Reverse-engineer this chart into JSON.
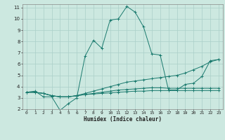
{
  "xlabel": "Humidex (Indice chaleur)",
  "bg_color": "#cce8e0",
  "grid_color": "#aacfc8",
  "line_color": "#1a7a6e",
  "xlim": [
    -0.5,
    23.5
  ],
  "ylim": [
    2,
    11.3
  ],
  "xticks": [
    0,
    1,
    2,
    3,
    4,
    5,
    6,
    7,
    8,
    9,
    10,
    11,
    12,
    13,
    14,
    15,
    16,
    17,
    18,
    19,
    20,
    21,
    22,
    23
  ],
  "yticks": [
    2,
    3,
    4,
    5,
    6,
    7,
    8,
    9,
    10,
    11
  ],
  "series": [
    {
      "x": [
        0,
        1,
        2,
        3,
        4,
        5,
        6,
        7,
        8,
        9,
        10,
        11,
        12,
        13,
        14,
        15,
        16,
        17,
        18,
        19,
        20,
        21,
        22,
        23
      ],
      "y": [
        3.5,
        3.6,
        3.1,
        3.1,
        1.9,
        2.5,
        3.0,
        6.7,
        8.1,
        7.4,
        9.9,
        10.0,
        11.1,
        10.6,
        9.3,
        6.9,
        6.8,
        3.7,
        3.7,
        4.2,
        4.3,
        4.9,
        6.3,
        6.4
      ]
    },
    {
      "x": [
        0,
        1,
        2,
        3,
        4,
        5,
        6,
        7,
        8,
        9,
        10,
        11,
        12,
        13,
        14,
        15,
        16,
        17,
        18,
        19,
        20,
        21,
        22,
        23
      ],
      "y": [
        3.5,
        3.5,
        3.4,
        3.2,
        3.1,
        3.1,
        3.2,
        3.4,
        3.6,
        3.8,
        4.0,
        4.2,
        4.4,
        4.5,
        4.6,
        4.7,
        4.8,
        4.9,
        5.0,
        5.2,
        5.5,
        5.8,
        6.2,
        6.4
      ]
    },
    {
      "x": [
        0,
        1,
        2,
        3,
        4,
        5,
        6,
        7,
        8,
        9,
        10,
        11,
        12,
        13,
        14,
        15,
        16,
        17,
        18,
        19,
        20,
        21,
        22,
        23
      ],
      "y": [
        3.5,
        3.5,
        3.4,
        3.2,
        3.1,
        3.1,
        3.2,
        3.3,
        3.4,
        3.5,
        3.6,
        3.7,
        3.75,
        3.8,
        3.85,
        3.9,
        3.9,
        3.85,
        3.85,
        3.85,
        3.85,
        3.85,
        3.85,
        3.85
      ]
    },
    {
      "x": [
        0,
        1,
        2,
        3,
        4,
        5,
        6,
        7,
        8,
        9,
        10,
        11,
        12,
        13,
        14,
        15,
        16,
        17,
        18,
        19,
        20,
        21,
        22,
        23
      ],
      "y": [
        3.5,
        3.5,
        3.4,
        3.2,
        3.1,
        3.1,
        3.2,
        3.3,
        3.35,
        3.4,
        3.45,
        3.5,
        3.55,
        3.6,
        3.6,
        3.65,
        3.65,
        3.65,
        3.65,
        3.65,
        3.65,
        3.65,
        3.65,
        3.65
      ]
    }
  ]
}
